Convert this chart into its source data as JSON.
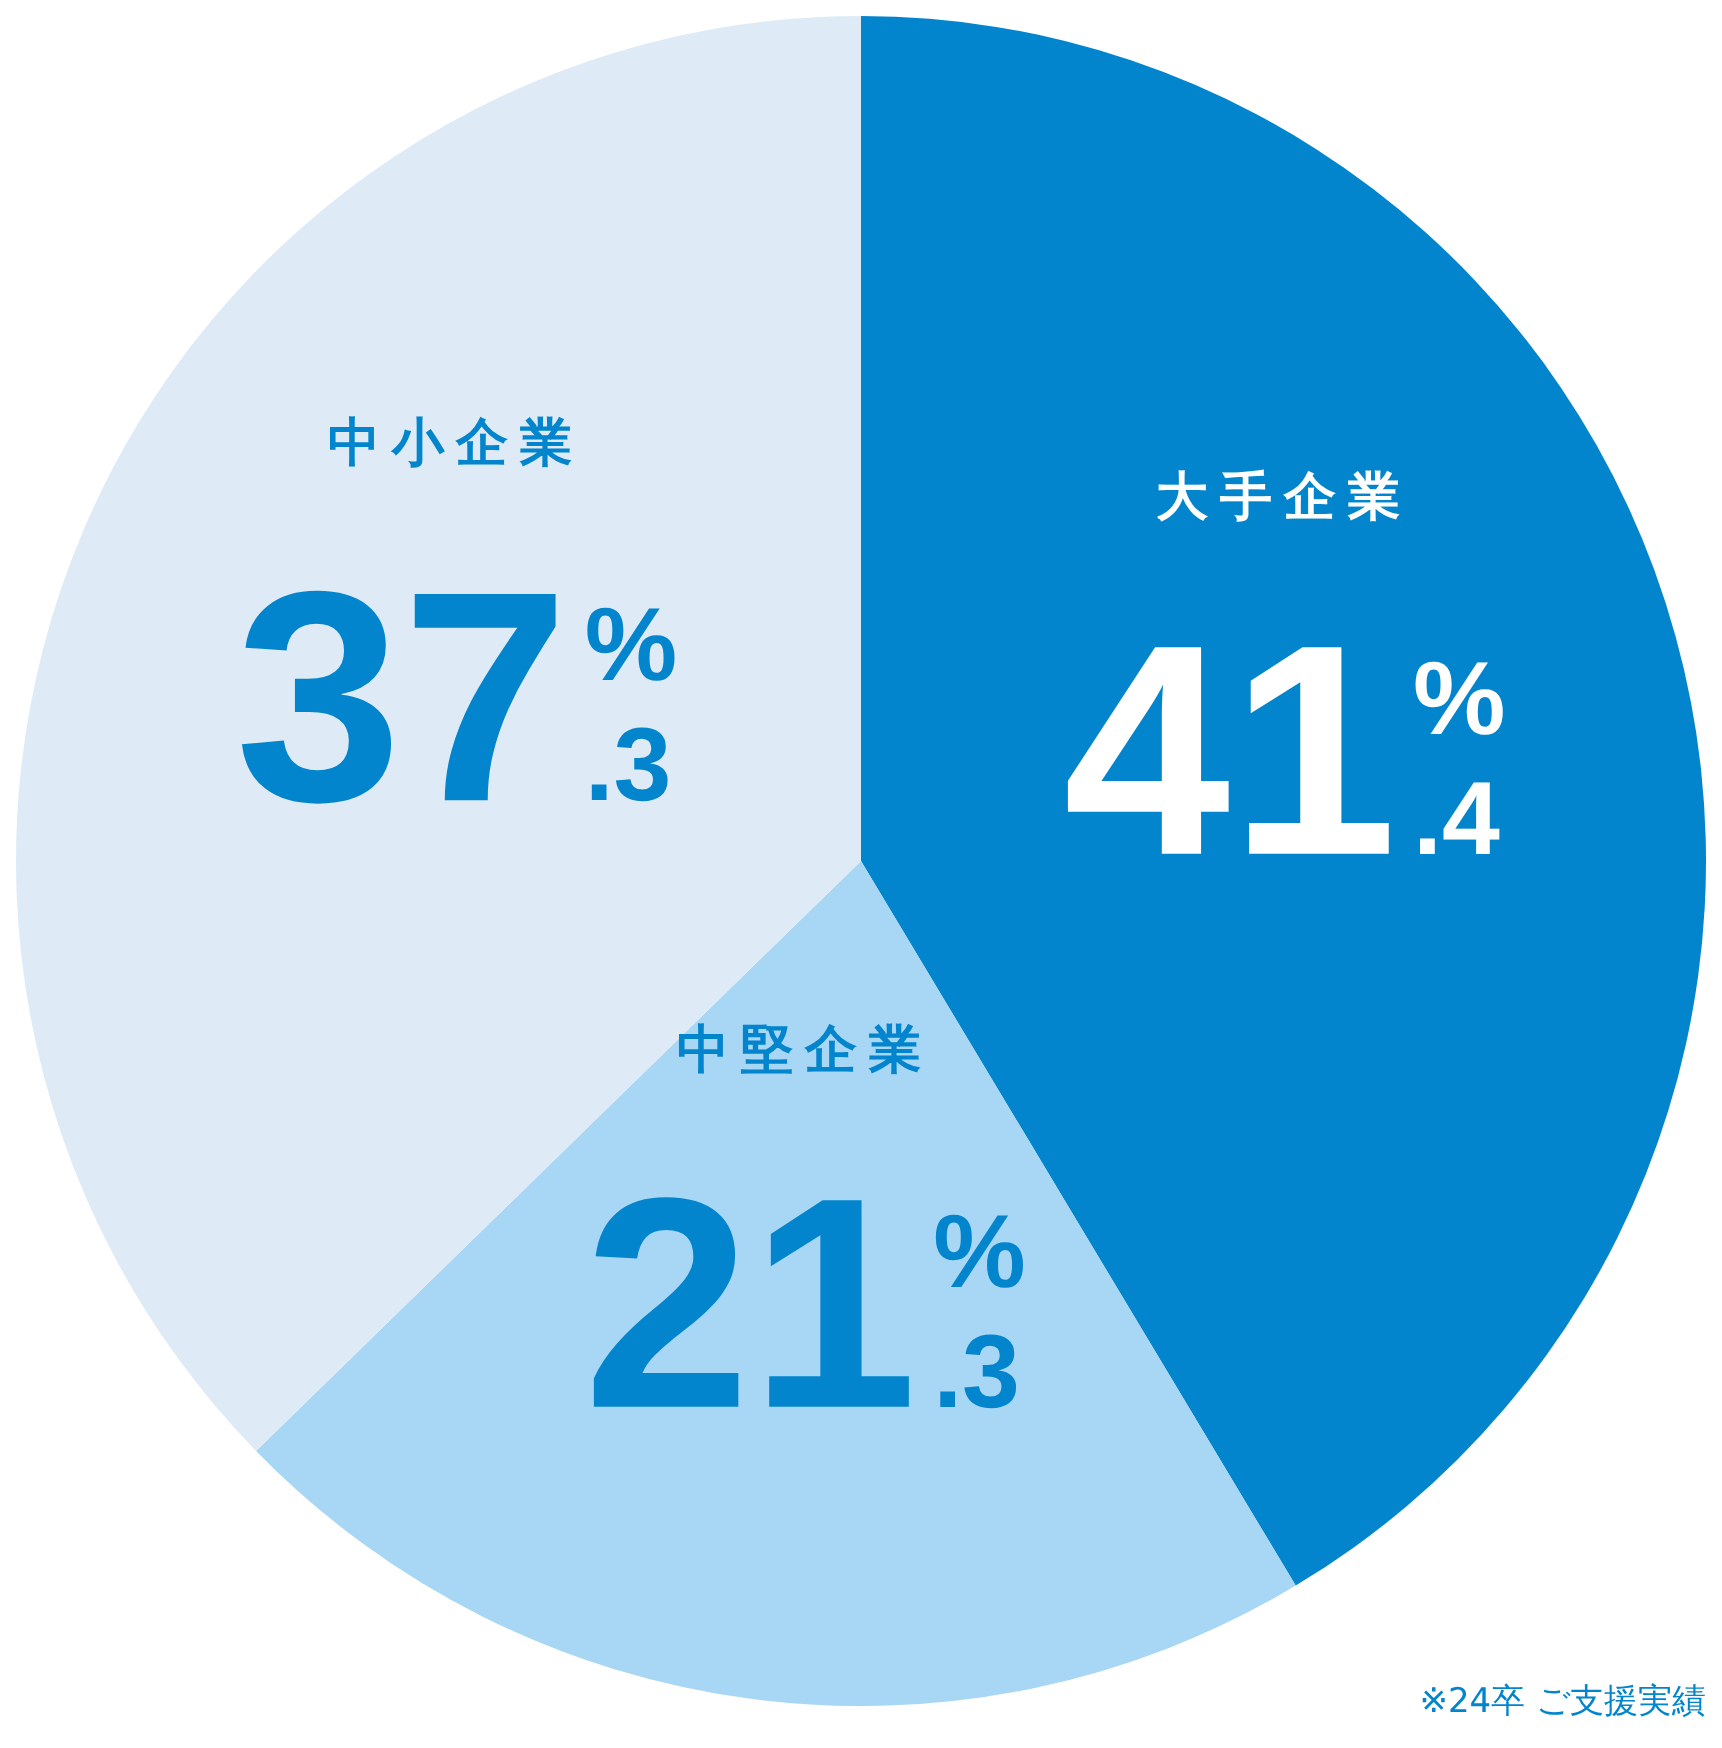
{
  "chart_data": {
    "type": "pie",
    "categories": [
      "大手企業",
      "中堅企業",
      "中小企業"
    ],
    "values": [
      41.4,
      21.3,
      37.3
    ],
    "colors": [
      "#0285cd",
      "#a8d6f5",
      "#deebf6"
    ],
    "value_labels": [
      "41%.4",
      "21%.3",
      "37%.3"
    ],
    "legend": false,
    "annotations": [
      "※24卒 ご支援実績"
    ]
  }
}
